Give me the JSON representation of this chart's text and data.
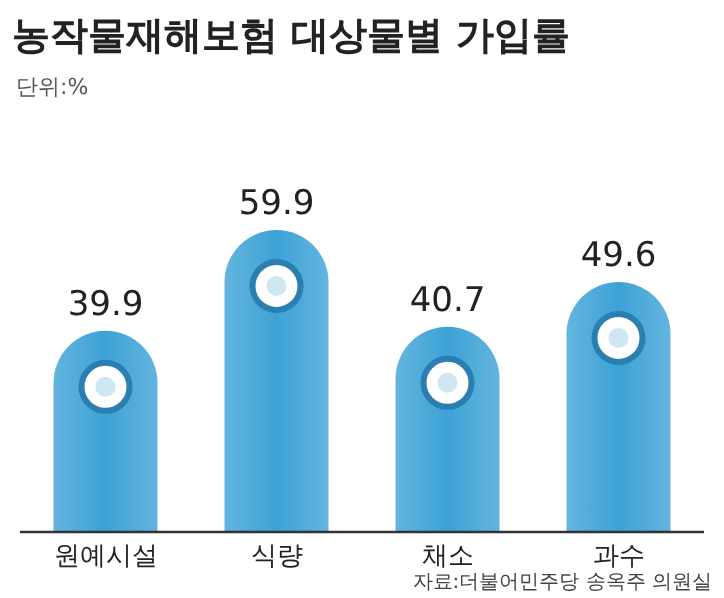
{
  "chart_data": {
    "type": "bar",
    "title": "농작물재해보험 대상물별 가입률",
    "subtitle": "단위:%",
    "categories": [
      "원예시설",
      "식량",
      "채소",
      "과수"
    ],
    "values": [
      39.9,
      59.9,
      40.7,
      49.6
    ],
    "color": "#3da2d6",
    "data_labels": true,
    "annotations": [
      "자료:더불어민주당 송옥주 의원실"
    ]
  }
}
